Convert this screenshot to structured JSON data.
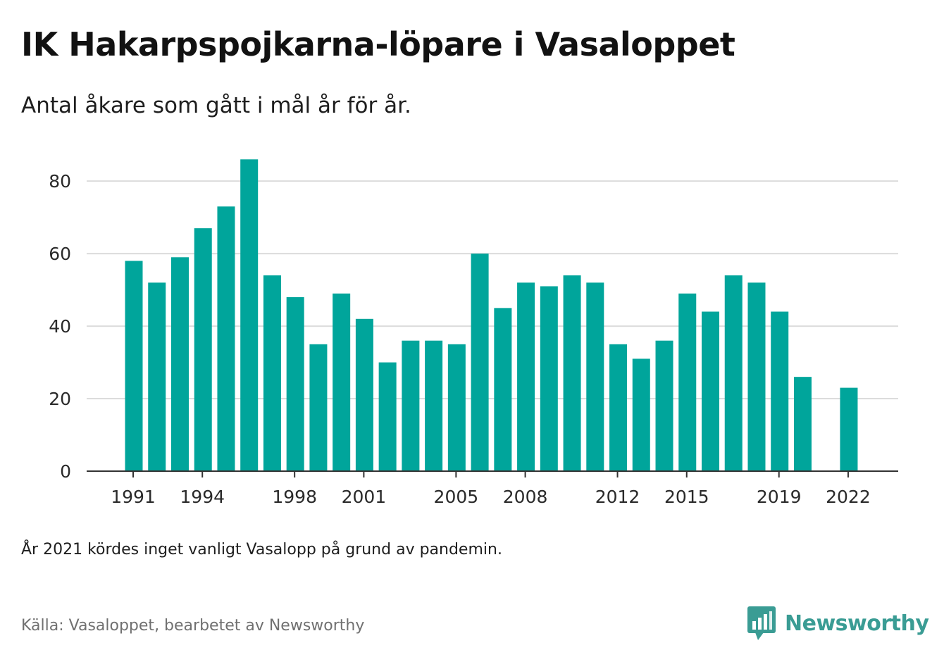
{
  "header": {
    "title": "IK Hakarpspojkarna-löpare i Vasaloppet",
    "subtitle": "Antal åkare som gått i mål år för år."
  },
  "footer": {
    "note": "År 2021 kördes inget vanligt Vasalopp på grund av pandemin.",
    "source": "Källa: Vasaloppet, bearbetet av Newsworthy",
    "brand": "Newsworthy"
  },
  "colors": {
    "bar": "#00a59b",
    "grid": "#dcdcdc",
    "axis": "#333333",
    "brand": "#3a9c94"
  },
  "icons": {
    "logo": "bar-chart-speech-bubble-icon"
  },
  "chart_data": {
    "type": "bar",
    "title": "IK Hakarpspojkarna-löpare i Vasaloppet",
    "subtitle": "Antal åkare som gått i mål år för år.",
    "xlabel": "",
    "ylabel": "",
    "categories": [
      1991,
      1992,
      1993,
      1994,
      1995,
      1996,
      1997,
      1998,
      1999,
      2000,
      2001,
      2002,
      2003,
      2004,
      2005,
      2006,
      2007,
      2008,
      2009,
      2010,
      2011,
      2012,
      2013,
      2014,
      2015,
      2016,
      2017,
      2018,
      2019,
      2020,
      2021,
      2022
    ],
    "values": [
      58,
      52,
      59,
      67,
      73,
      86,
      54,
      48,
      35,
      49,
      42,
      30,
      36,
      36,
      35,
      60,
      45,
      52,
      51,
      54,
      52,
      35,
      31,
      36,
      49,
      44,
      54,
      52,
      44,
      26,
      null,
      23
    ],
    "x_tick_labels": [
      "1991",
      "1994",
      "1998",
      "2001",
      "2005",
      "2008",
      "2012",
      "2015",
      "2019",
      "2022"
    ],
    "y_ticks": [
      0,
      20,
      40,
      60,
      80
    ],
    "ylim": [
      0,
      88
    ],
    "grid": "horizontal",
    "legend": "none"
  }
}
